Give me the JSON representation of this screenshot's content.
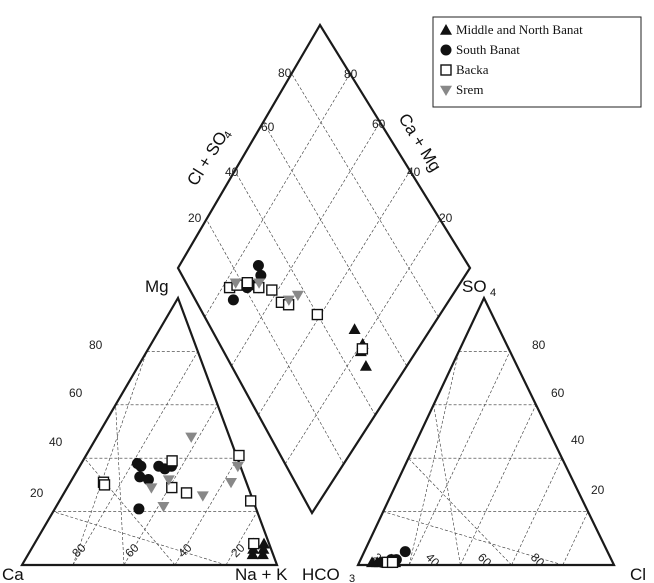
{
  "chart_data": {
    "type": "scatter",
    "title": "",
    "axes": {
      "cation_corners": {
        "bottom_left": "Ca",
        "bottom_right": "Na + K",
        "top": "Mg"
      },
      "anion_corners": {
        "bottom_left": "HCO",
        "bottom_left_sub": "3",
        "bottom_right": "Cl",
        "top": "SO",
        "top_sub": "4"
      },
      "diamond_left_label": "Cl + SO",
      "diamond_left_sub": "4",
      "diamond_right_label": "Ca + Mg",
      "ticks": [
        "20",
        "40",
        "60",
        "80"
      ]
    },
    "legend": {
      "position": "top-right",
      "entries": [
        {
          "name": "Middle and North Banat",
          "marker": "triangle-up",
          "color": "#111111"
        },
        {
          "name": "South Banat",
          "marker": "circle",
          "color": "#111111"
        },
        {
          "name": "Backa",
          "marker": "square-open",
          "color": "#111111"
        },
        {
          "name": "Srem",
          "marker": "triangle-down",
          "color": "#888888"
        }
      ]
    },
    "series": [
      {
        "name": "Middle and North Banat",
        "cation": [
          [
            88,
            4
          ],
          [
            92,
            4
          ],
          [
            86,
            8
          ],
          [
            90,
            8
          ],
          [
            91,
            6
          ],
          [
            87,
            6
          ]
        ],
        "anion": [
          [
            5,
            1
          ],
          [
            10,
            1
          ],
          [
            14,
            1
          ],
          [
            8,
            1
          ],
          [
            12,
            2
          ],
          [
            7,
            1
          ]
        ],
        "diamond": [
          [
            14,
            46
          ],
          [
            19,
            47
          ],
          [
            20,
            49
          ],
          [
            26,
            49
          ]
        ]
      },
      {
        "name": "South Banat",
        "cation": [
          [
            22,
            38
          ],
          [
            24,
            37
          ],
          [
            31,
            37
          ],
          [
            36,
            37
          ],
          [
            34,
            36
          ],
          [
            30,
            32
          ],
          [
            26,
            33
          ],
          [
            33,
            21
          ]
        ],
        "anion": [
          [
            16,
            5
          ],
          [
            12,
            2
          ],
          [
            9,
            1
          ],
          [
            14,
            2
          ]
        ],
        "diamond": [
          [
            74,
            13
          ],
          [
            72,
            20
          ],
          [
            70,
            23
          ],
          [
            68,
            24
          ],
          [
            70,
            27
          ],
          [
            73,
            28
          ]
        ]
      },
      {
        "name": "Backa",
        "cation": [
          [
            13,
            31
          ],
          [
            14,
            30
          ],
          [
            35,
            39
          ],
          [
            41,
            29
          ],
          [
            60,
            41
          ],
          [
            75,
            24
          ],
          [
            86,
            8
          ],
          [
            48,
            27
          ]
        ],
        "anion": [
          [
            11,
            1
          ],
          [
            13,
            1
          ]
        ],
        "diamond": [
          [
            78,
            14
          ],
          [
            76,
            17
          ],
          [
            73,
            21
          ],
          [
            68,
            24
          ],
          [
            63,
            28
          ],
          [
            57,
            29
          ],
          [
            54,
            31
          ],
          [
            42,
            39
          ],
          [
            19,
            48
          ]
        ]
      },
      {
        "name": "Srem",
        "cation": [
          [
            37,
            48
          ],
          [
            62,
            37
          ],
          [
            63,
            31
          ],
          [
            38,
            32
          ],
          [
            33,
            29
          ],
          [
            55,
            26
          ],
          [
            42,
            22
          ]
        ],
        "anion": [],
        "diamond": [
          [
            77,
            17
          ],
          [
            69,
            25
          ],
          [
            55,
            32
          ],
          [
            53,
            36
          ]
        ]
      }
    ]
  }
}
